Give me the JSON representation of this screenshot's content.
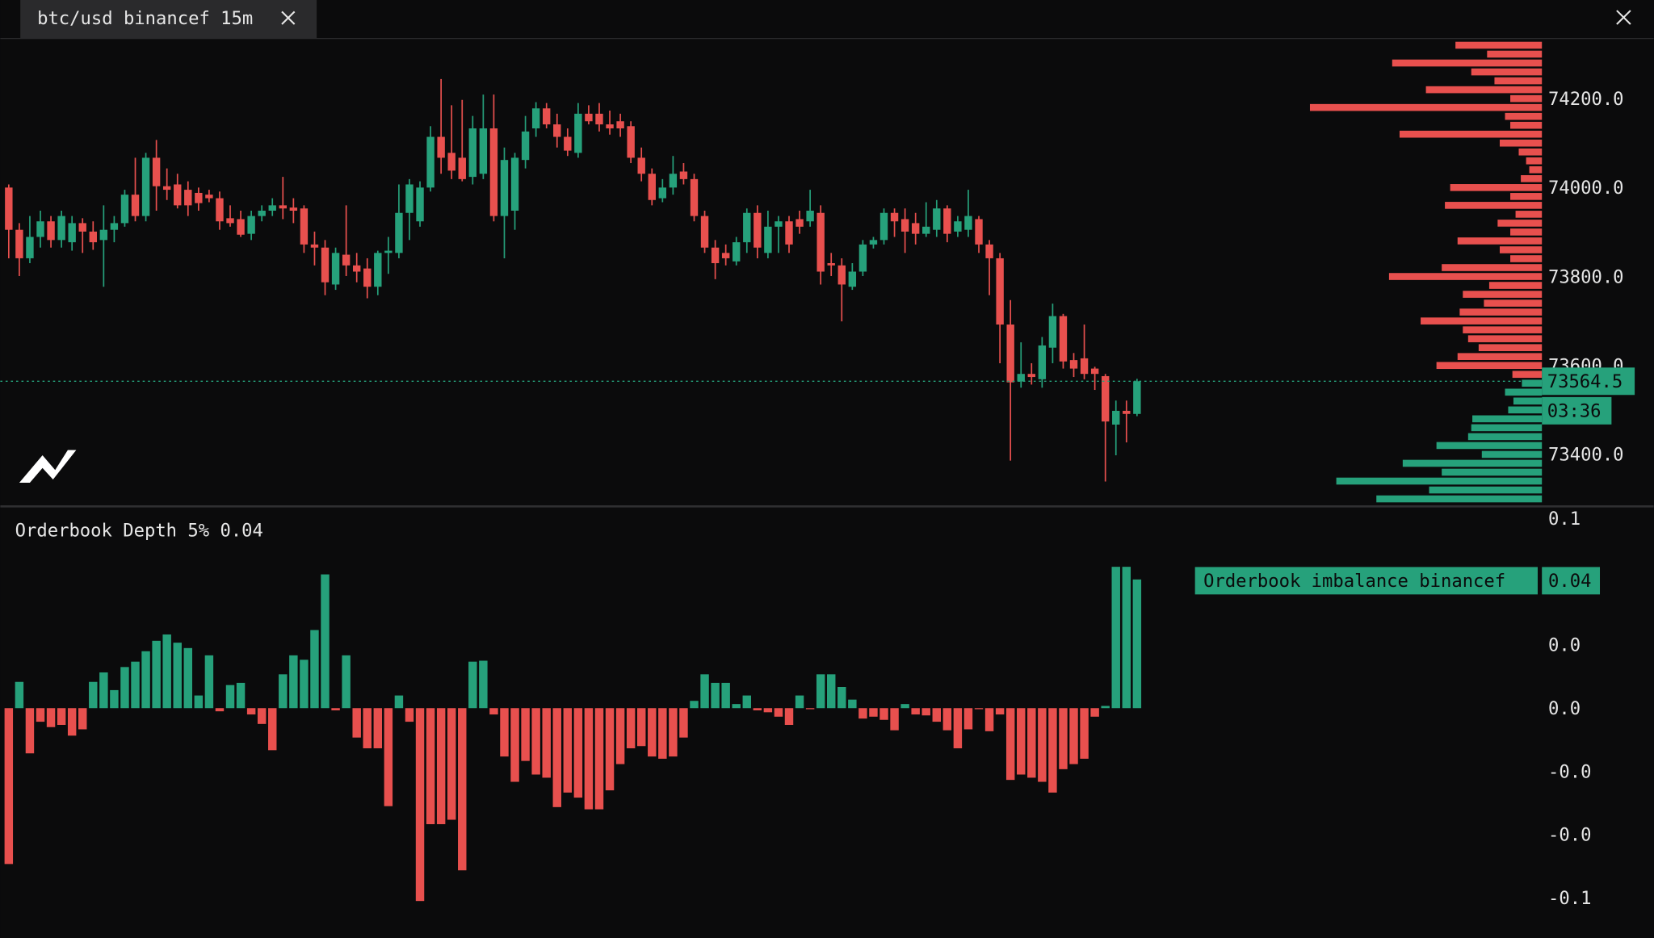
{
  "tab": {
    "title": "btc/usd binancef 15m"
  },
  "chart_data": [
    {
      "type": "candlestick",
      "up_color": "#26a17b",
      "down_color": "#e8504e",
      "open": [
        74000,
        73905,
        73841,
        73889,
        73924,
        73882,
        73877,
        73920,
        73901,
        73882,
        73905,
        73920,
        73984,
        73936,
        74067,
        74003,
        74007,
        73995,
        73988,
        73984,
        73976,
        73931,
        73929,
        73896,
        73936,
        73948,
        73960,
        73955,
        73953,
        73872,
        73865,
        73782,
        73849,
        73825,
        73818,
        73777,
        73853,
        73853,
        73943,
        73924,
        74000,
        74114,
        74078,
        74067,
        74024,
        74031,
        74133,
        73936,
        73948,
        74062,
        74133,
        74178,
        74142,
        74114,
        74078,
        74166,
        74166,
        74142,
        74149,
        74138,
        74067,
        74031,
        73976,
        74000,
        74036,
        74019,
        73936,
        73865,
        73853,
        73834,
        73877,
        73943,
        73853,
        73912,
        73924,
        73929,
        73924,
        73943,
        73830,
        73825,
        73777,
        73811,
        73872,
        73882,
        73943,
        73929,
        73920,
        73896,
        73905,
        73953,
        73901,
        73905,
        73929,
        73872,
        73841,
        73692,
        73564,
        73581,
        73569,
        73640,
        73711,
        73612,
        73616,
        73593,
        73576,
        73467,
        73498,
        73491
      ],
      "high": [
        74007,
        73920,
        73936,
        73948,
        73936,
        73948,
        73936,
        73931,
        73924,
        73960,
        73936,
        73995,
        74067,
        74078,
        74107,
        74043,
        74031,
        74014,
        74000,
        73995,
        73991,
        73960,
        73948,
        73948,
        73960,
        73976,
        74024,
        73976,
        73960,
        73901,
        73882,
        73865,
        73960,
        73853,
        73841,
        73858,
        73889,
        74007,
        74019,
        74014,
        74138,
        74244,
        74185,
        74197,
        74161,
        74209,
        74209,
        74090,
        74078,
        74161,
        74192,
        74190,
        74166,
        74133,
        74190,
        74185,
        74190,
        74173,
        74166,
        74149,
        74090,
        74043,
        74019,
        74071,
        74055,
        74031,
        73948,
        73882,
        73872,
        73889,
        73953,
        73960,
        73948,
        73936,
        73936,
        73948,
        73995,
        73960,
        73853,
        73841,
        73830,
        73882,
        73889,
        73953,
        73953,
        73953,
        73943,
        73967,
        73972,
        73960,
        73936,
        73995,
        73936,
        73882,
        73853,
        73747,
        73652,
        73605,
        73664,
        73739,
        73716,
        73628,
        73692,
        73597,
        73581,
        73521,
        73521,
        73570
      ],
      "low": [
        73841,
        73801,
        73830,
        73865,
        73865,
        73865,
        73858,
        73853,
        73860,
        73777,
        73877,
        73912,
        73924,
        73924,
        73948,
        73972,
        73953,
        73936,
        73948,
        73967,
        73905,
        73912,
        73889,
        73882,
        73924,
        73936,
        73929,
        73920,
        73853,
        73825,
        73758,
        73770,
        73801,
        73787,
        73751,
        73758,
        73806,
        73841,
        73882,
        73912,
        73991,
        74031,
        74019,
        74014,
        74007,
        74019,
        73924,
        73841,
        73905,
        74043,
        74114,
        74133,
        74090,
        74071,
        74067,
        74142,
        74126,
        74119,
        74114,
        74055,
        74014,
        73960,
        73967,
        73984,
        74007,
        73924,
        73853,
        73794,
        73825,
        73825,
        73853,
        73841,
        73841,
        73853,
        73853,
        73896,
        73912,
        73782,
        73801,
        73699,
        73770,
        73801,
        73863,
        73872,
        73889,
        73853,
        73872,
        73889,
        73889,
        73877,
        73889,
        73889,
        73853,
        73758,
        73605,
        73386,
        73550,
        73557,
        73550,
        73605,
        73593,
        73574,
        73569,
        73545,
        73339,
        73398,
        73427,
        73486
      ],
      "close": [
        73905,
        73841,
        73889,
        73924,
        73882,
        73936,
        73920,
        73901,
        73877,
        73905,
        73920,
        73984,
        73936,
        74067,
        74003,
        73995,
        73960,
        73960,
        73965,
        73976,
        73924,
        73920,
        73894,
        73936,
        73948,
        73960,
        73953,
        73948,
        73872,
        73865,
        73787,
        73853,
        73825,
        73811,
        73777,
        73853,
        73858,
        73943,
        74007,
        74000,
        74114,
        74067,
        74038,
        74019,
        74133,
        74133,
        73936,
        74062,
        74067,
        74126,
        74178,
        74142,
        74114,
        74083,
        74166,
        74149,
        74142,
        74133,
        74133,
        74067,
        74031,
        73972,
        74000,
        74031,
        74019,
        73936,
        73865,
        73830,
        73841,
        73877,
        73943,
        73865,
        73912,
        73924,
        73872,
        73912,
        73948,
        73811,
        73825,
        73782,
        73811,
        73872,
        73882,
        73943,
        73924,
        73901,
        73896,
        73912,
        73953,
        73896,
        73924,
        73936,
        73872,
        73841,
        73692,
        73562,
        73581,
        73574,
        73645,
        73711,
        73609,
        73593,
        73581,
        73581,
        73474,
        73498,
        73491,
        73564.5
      ],
      "ylim": [
        73289,
        74334
      ],
      "yticks": [
        {
          "value": 73400,
          "label": "73400.0"
        },
        {
          "value": 73600,
          "label": "73600.0"
        },
        {
          "value": 73800,
          "label": "73800.0"
        },
        {
          "value": 74000,
          "label": "74000.0"
        },
        {
          "value": 74200,
          "label": "74200.0"
        }
      ],
      "grid": false,
      "last_price": 73564.5,
      "countdown": "03:36",
      "depth": {
        "prices": [
          74320,
          74300,
          74280,
          74260,
          74240,
          74220,
          74200,
          74180,
          74160,
          74140,
          74120,
          74100,
          74080,
          74060,
          74040,
          74020,
          74000,
          73980,
          73960,
          73940,
          73920,
          73900,
          73880,
          73860,
          73840,
          73820,
          73800,
          73780,
          73760,
          73740,
          73720,
          73700,
          73680,
          73660,
          73640,
          73620,
          73600,
          73580,
          73560,
          73540,
          73520,
          73500,
          73480,
          73460,
          73440,
          73420,
          73400,
          73380,
          73360,
          73340,
          73320,
          73300
        ],
        "sizes": [
          82,
          52,
          142,
          67,
          45,
          110,
          30,
          220,
          35,
          30,
          135,
          40,
          22,
          15,
          12,
          20,
          87,
          30,
          92,
          25,
          42,
          30,
          80,
          40,
          30,
          95,
          145,
          50,
          75,
          55,
          78,
          115,
          75,
          70,
          60,
          80,
          100,
          28,
          19,
          35,
          27,
          32,
          66,
          67,
          70,
          100,
          57,
          132,
          95,
          195,
          107,
          157
        ]
      }
    },
    {
      "type": "bar",
      "title": "Orderbook Depth 5% 0.04",
      "up_color": "#26a17b",
      "down_color": "#e8504e",
      "series": [
        {
          "name": "Orderbook imbalance binancef",
          "color": "#26a17b",
          "values": [
            -0.0493,
            0.0083,
            -0.0143,
            -0.0043,
            -0.006,
            -0.0053,
            -0.0087,
            -0.0067,
            0.0083,
            0.0113,
            0.0057,
            0.013,
            0.0147,
            0.018,
            0.0213,
            0.0233,
            0.0207,
            0.019,
            0.004,
            0.0167,
            -0.001,
            0.0073,
            0.008,
            -0.002,
            -0.005,
            -0.0133,
            0.0107,
            0.0167,
            0.0153,
            0.0247,
            0.0423,
            -0.0007,
            0.0167,
            -0.0093,
            -0.0127,
            -0.0127,
            -0.031,
            0.004,
            -0.0043,
            -0.061,
            -0.0367,
            -0.0367,
            -0.0353,
            -0.0513,
            0.0147,
            0.015,
            -0.002,
            -0.0153,
            -0.0233,
            -0.0167,
            -0.021,
            -0.022,
            -0.0313,
            -0.0267,
            -0.0283,
            -0.032,
            -0.032,
            -0.026,
            -0.0177,
            -0.0127,
            -0.012,
            -0.0153,
            -0.016,
            -0.0153,
            -0.0093,
            0.0023,
            0.0107,
            0.008,
            0.008,
            0.0013,
            0.004,
            -0.0007,
            -0.0013,
            -0.0027,
            -0.0053,
            0.004,
            -0.0003,
            0.0107,
            0.0107,
            0.0067,
            0.0027,
            -0.0033,
            -0.0027,
            -0.0037,
            -0.007,
            0.0013,
            -0.002,
            -0.0023,
            -0.0043,
            -0.007,
            -0.0127,
            -0.0067,
            -0.0003,
            -0.0073,
            -0.002,
            -0.0227,
            -0.021,
            -0.022,
            -0.0233,
            -0.0267,
            -0.0193,
            -0.0177,
            -0.016,
            -0.0027,
            0.0007,
            0.0447,
            0.0447,
            0.0407
          ]
        }
      ],
      "current_value": 0.04,
      "ylim": [
        -0.0727,
        0.0633
      ],
      "yticks": [
        {
          "value": -0.06,
          "label": "-0.1"
        },
        {
          "value": -0.04,
          "label": "-0.0"
        },
        {
          "value": -0.02,
          "label": "-0.0"
        },
        {
          "value": 0,
          "label": "0.0"
        },
        {
          "value": 0.02,
          "label": "0.0"
        },
        {
          "value": 0.06,
          "label": "0.1"
        }
      ],
      "grid": false
    }
  ]
}
